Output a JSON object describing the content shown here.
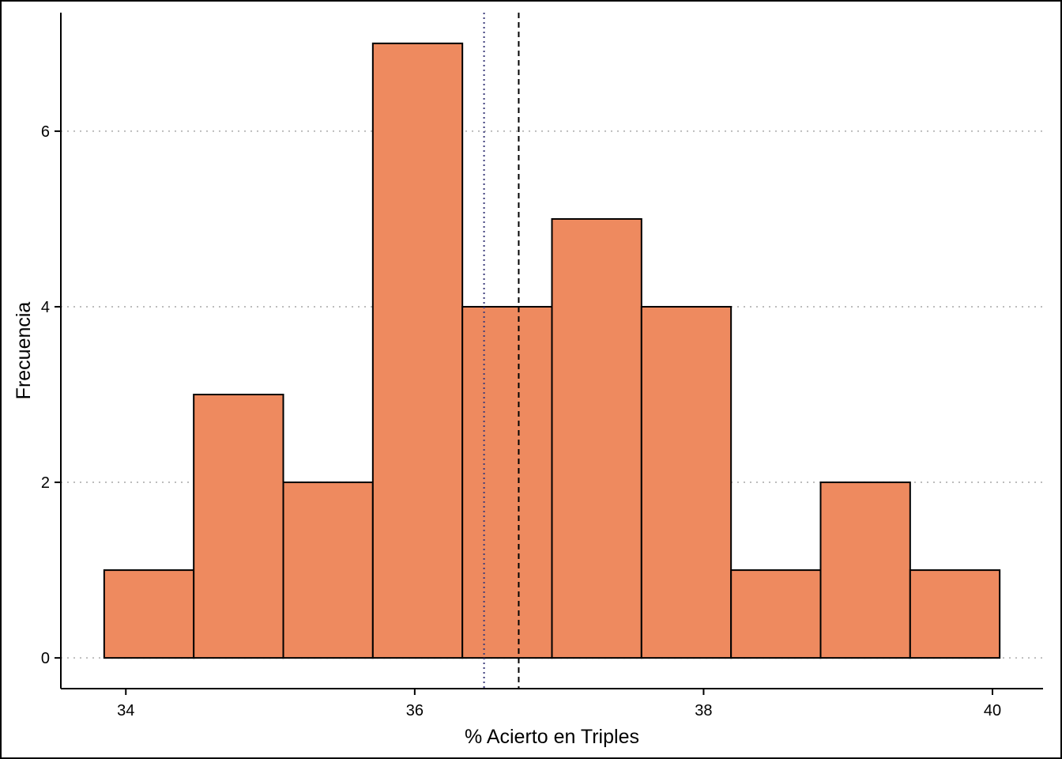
{
  "chart_data": {
    "type": "bar",
    "subtype": "histogram",
    "xlabel": "% Acierto en Triples",
    "ylabel": "Frecuencia",
    "bin_edges": [
      33.85,
      34.47,
      35.09,
      35.71,
      36.33,
      36.95,
      37.57,
      38.19,
      38.81,
      39.43,
      40.05
    ],
    "counts": [
      1,
      3,
      2,
      7,
      4,
      5,
      4,
      1,
      2,
      1
    ],
    "xlim": [
      33.55,
      40.35
    ],
    "ylim": [
      -0.35,
      7.35
    ],
    "x_ticks": [
      {
        "value": 34,
        "label": "34"
      },
      {
        "value": 36,
        "label": "36"
      },
      {
        "value": 38,
        "label": "38"
      },
      {
        "value": 40,
        "label": "40"
      }
    ],
    "y_ticks": [
      {
        "value": 0,
        "label": "0"
      },
      {
        "value": 2,
        "label": "2"
      },
      {
        "value": 4,
        "label": "4"
      },
      {
        "value": 6,
        "label": "6"
      }
    ],
    "grid": "horizontal dotted",
    "reference_lines": [
      {
        "x": 36.48,
        "style": "dotted",
        "color": "#3b3b7a"
      },
      {
        "x": 36.72,
        "style": "dashed",
        "color": "#000000"
      }
    ],
    "colors": {
      "bar_fill": "#EE8A5F",
      "bar_stroke": "#000000",
      "grid": "#bdbdbd"
    }
  }
}
